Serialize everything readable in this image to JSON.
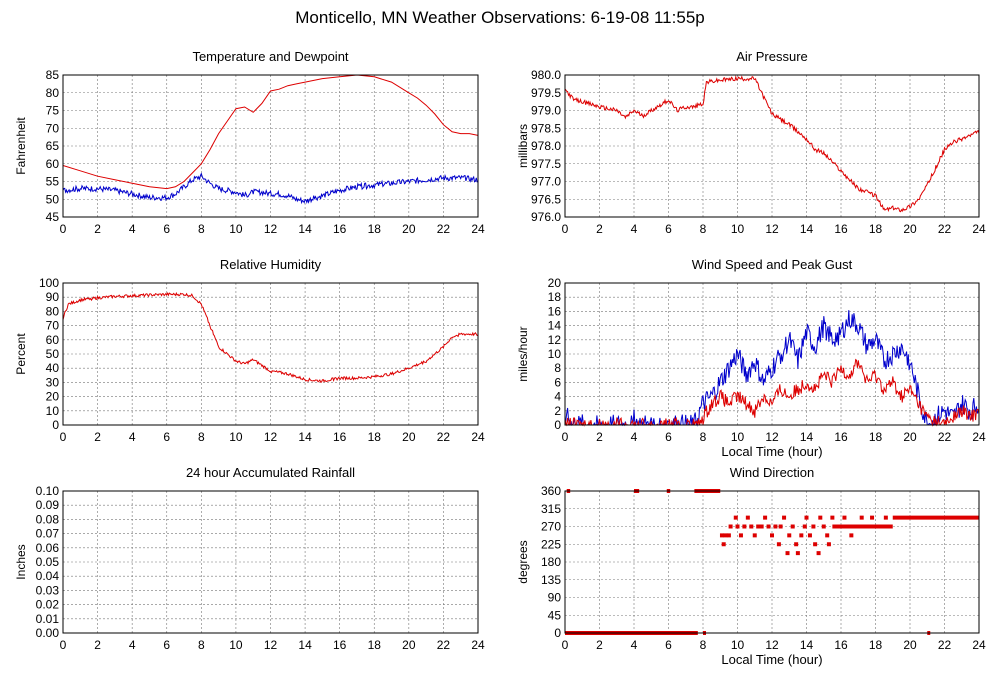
{
  "title": "Monticello, MN Weather Observations: 6-19-08 11:55p",
  "colors": {
    "red": "#dd0000",
    "blue": "#0000cc",
    "grid": "#777777",
    "frame": "#000000"
  },
  "chart_data": [
    {
      "id": "temp",
      "type": "line",
      "title": "Temperature and Dewpoint",
      "xlabel": "",
      "ylabel": "Fahrenheit",
      "xlim": [
        0,
        24
      ],
      "ylim": [
        45,
        85
      ],
      "xticks": [
        0,
        2,
        4,
        6,
        8,
        10,
        12,
        14,
        16,
        18,
        20,
        22,
        24
      ],
      "yticks": [
        45,
        50,
        55,
        60,
        65,
        70,
        75,
        80,
        85
      ],
      "grid": true,
      "series": [
        {
          "color": "#dd0000",
          "x": [
            0,
            1,
            2,
            3,
            4,
            5,
            6,
            6.5,
            7,
            7.5,
            8,
            8.5,
            9,
            9.5,
            10,
            10.5,
            11,
            11.5,
            12,
            12.5,
            13,
            13.5,
            14,
            15,
            16,
            17,
            18,
            19,
            20,
            20.5,
            21,
            21.5,
            22,
            22.5,
            23,
            23.5,
            24
          ],
          "y": [
            59.5,
            58,
            56.5,
            55.5,
            54.5,
            53.5,
            53,
            53.5,
            55,
            57.5,
            60,
            64,
            68.5,
            72,
            75.5,
            76,
            74.5,
            77,
            80.5,
            81,
            82,
            82.5,
            83,
            84,
            84.5,
            85,
            84.5,
            83,
            80,
            78.5,
            76.5,
            74,
            71,
            69,
            68.5,
            68.5,
            68
          ]
        },
        {
          "color": "#0000cc",
          "x": [
            0,
            1,
            2,
            3,
            4,
            5,
            6,
            6.5,
            7,
            7.5,
            8,
            8.5,
            9,
            9.5,
            10,
            10.5,
            11,
            11.5,
            12,
            12.5,
            13,
            13.5,
            14,
            15,
            16,
            17,
            18,
            19,
            20,
            21,
            22,
            23,
            24
          ],
          "y": [
            52.5,
            53,
            53,
            52.5,
            51.5,
            50.5,
            50.5,
            51.5,
            53.5,
            55.5,
            56.5,
            54.5,
            53,
            52.5,
            52,
            51,
            52,
            52,
            51.5,
            51.5,
            51,
            50,
            49.5,
            51,
            52.5,
            53.5,
            54,
            54.5,
            55,
            55.5,
            56,
            56,
            55.5
          ],
          "noise": 0.8
        }
      ]
    },
    {
      "id": "pressure",
      "type": "line",
      "title": "Air Pressure",
      "xlabel": "",
      "ylabel": "millibars",
      "xlim": [
        0,
        24
      ],
      "ylim": [
        976.0,
        980.0
      ],
      "xticks": [
        0,
        2,
        4,
        6,
        8,
        10,
        12,
        14,
        16,
        18,
        20,
        22,
        24
      ],
      "yticks": [
        "976.0",
        "976.5",
        "977.0",
        "977.5",
        "978.0",
        "978.5",
        "979.0",
        "979.5",
        "980.0"
      ],
      "grid": true,
      "series": [
        {
          "color": "#dd0000",
          "x": [
            0,
            0.5,
            1,
            2,
            3,
            3.5,
            4,
            4.5,
            5,
            6,
            6.5,
            7,
            7.5,
            8,
            8.2,
            9,
            10,
            11,
            11.5,
            12,
            13,
            14,
            14.5,
            15,
            16,
            17,
            17.5,
            18,
            18.5,
            19,
            19.5,
            20,
            20.5,
            21,
            21.5,
            22,
            22.5,
            23,
            24
          ],
          "y": [
            979.6,
            979.3,
            979.25,
            979.1,
            979.0,
            978.8,
            979.0,
            978.85,
            979.0,
            979.3,
            979.0,
            979.1,
            979.1,
            979.2,
            979.8,
            979.85,
            979.9,
            979.9,
            979.4,
            978.9,
            978.6,
            978.2,
            977.9,
            977.8,
            977.3,
            976.8,
            976.7,
            976.6,
            976.2,
            976.25,
            976.2,
            976.3,
            976.5,
            976.9,
            977.4,
            977.9,
            978.1,
            978.2,
            978.4
          ],
          "noise": 0.06
        }
      ]
    },
    {
      "id": "humidity",
      "type": "line",
      "title": "Relative Humidity",
      "xlabel": "",
      "ylabel": "Percent",
      "xlim": [
        0,
        24
      ],
      "ylim": [
        0,
        100
      ],
      "xticks": [
        0,
        2,
        4,
        6,
        8,
        10,
        12,
        14,
        16,
        18,
        20,
        22,
        24
      ],
      "yticks": [
        0,
        10,
        20,
        30,
        40,
        50,
        60,
        70,
        80,
        90,
        100
      ],
      "grid": true,
      "series": [
        {
          "color": "#dd0000",
          "x": [
            0,
            0.3,
            1,
            2,
            3,
            4,
            5,
            6,
            7,
            7.5,
            8,
            8.5,
            9,
            9.5,
            10,
            10.5,
            11,
            11.5,
            12,
            12.5,
            13,
            14,
            15,
            16,
            17,
            18,
            19,
            20,
            21,
            22,
            22.5,
            23,
            24
          ],
          "y": [
            75,
            85,
            88,
            89.5,
            90.5,
            91,
            91.5,
            92,
            92,
            91,
            85,
            70,
            55,
            50,
            45,
            43,
            46,
            42,
            38,
            37,
            36,
            32,
            31,
            33,
            33,
            34,
            36,
            40,
            45,
            55,
            62,
            64,
            64
          ],
          "noise": 1.0
        }
      ]
    },
    {
      "id": "wind",
      "type": "line",
      "title": "Wind Speed and Peak Gust",
      "xlabel": "Local Time (hour)",
      "ylabel": "miles/hour",
      "xlim": [
        0,
        24
      ],
      "ylim": [
        0,
        20
      ],
      "xticks": [
        0,
        2,
        4,
        6,
        8,
        10,
        12,
        14,
        16,
        18,
        20,
        22,
        24
      ],
      "yticks": [
        0,
        2,
        4,
        6,
        8,
        10,
        12,
        14,
        16,
        18,
        20
      ],
      "grid": true,
      "series": [
        {
          "color": "#0000cc",
          "x": [
            0,
            0.1,
            0.2,
            0.3,
            0.4,
            3.9,
            4.0,
            4.1,
            4.2,
            4.3,
            5.9,
            6.0,
            6.1,
            6.2,
            7.5,
            8,
            8.5,
            9,
            9.5,
            10,
            10.5,
            11,
            11.5,
            12,
            12.5,
            13,
            13.5,
            14,
            14.5,
            15,
            15.5,
            16,
            16.5,
            17,
            17.5,
            18,
            18.5,
            19,
            19.5,
            20,
            20.5,
            21,
            21.5,
            22,
            22.5,
            23,
            23.5,
            24
          ],
          "y": [
            0,
            2,
            2,
            0,
            0,
            0,
            2,
            1,
            0,
            0,
            0,
            1,
            0,
            0,
            0,
            3,
            4,
            6,
            8,
            10,
            7,
            9,
            6,
            8,
            10,
            12,
            9,
            13,
            11,
            14,
            12,
            13,
            15,
            14,
            11,
            12,
            9,
            10,
            11,
            9,
            4,
            0,
            1,
            2,
            1,
            3,
            2,
            3
          ],
          "noise": 1.5
        },
        {
          "color": "#dd0000",
          "x": [
            0,
            7.8,
            8,
            8.5,
            9,
            9.5,
            10,
            10.5,
            11,
            11.5,
            12,
            12.5,
            13,
            13.5,
            14,
            14.5,
            15,
            15.5,
            16,
            16.5,
            17,
            17.5,
            18,
            18.5,
            19,
            19.5,
            20,
            20.5,
            21,
            22,
            22.5,
            23,
            23.5,
            24
          ],
          "y": [
            0,
            0,
            1,
            3,
            4,
            3,
            4,
            3,
            2,
            4,
            3,
            5,
            4,
            5,
            6,
            5,
            7,
            6,
            8,
            7,
            9,
            6,
            7,
            5,
            6,
            4,
            5,
            3,
            1,
            0,
            1,
            2,
            1,
            2
          ],
          "noise": 1.0
        }
      ]
    },
    {
      "id": "rain",
      "type": "line",
      "title": "24 hour Accumulated Rainfall",
      "xlabel": "",
      "ylabel": "Inches",
      "xlim": [
        0,
        24
      ],
      "ylim": [
        0,
        0.1
      ],
      "xticks": [
        0,
        2,
        4,
        6,
        8,
        10,
        12,
        14,
        16,
        18,
        20,
        22,
        24
      ],
      "yticks": [
        "0.00",
        "0.01",
        "0.02",
        "0.03",
        "0.04",
        "0.05",
        "0.06",
        "0.07",
        "0.08",
        "0.09",
        "0.10"
      ],
      "grid": true,
      "series": [
        {
          "color": "#dd0000",
          "x": [
            0,
            24
          ],
          "y": [
            0,
            0
          ]
        }
      ]
    },
    {
      "id": "direction",
      "type": "scatter",
      "title": "Wind Direction",
      "xlabel": "Local Time (hour)",
      "ylabel": "degrees",
      "xlim": [
        0,
        24
      ],
      "ylim": [
        0,
        360
      ],
      "xticks": [
        0,
        2,
        4,
        6,
        8,
        10,
        12,
        14,
        16,
        18,
        20,
        22,
        24
      ],
      "yticks": [
        0,
        45,
        90,
        135,
        180,
        225,
        270,
        315,
        360
      ],
      "grid": true,
      "series": [
        {
          "color": "#dd0000",
          "segments": [
            {
              "x0": 0,
              "x1": 7.7,
              "y": 0
            },
            {
              "x0": 8.0,
              "x1": 8.1,
              "y": 0
            },
            {
              "x0": 21.0,
              "x1": 21.1,
              "y": 0
            },
            {
              "x0": 0.1,
              "x1": 0.3,
              "y": 360
            },
            {
              "x0": 4.0,
              "x1": 4.3,
              "y": 360
            },
            {
              "x0": 5.9,
              "x1": 6.1,
              "y": 360
            },
            {
              "x0": 7.5,
              "x1": 9.0,
              "y": 360
            },
            {
              "x0": 15.5,
              "x1": 19.0,
              "y": 270
            },
            {
              "x0": 19.0,
              "x1": 24.0,
              "y": 292.5
            }
          ],
          "points": [
            [
              9.1,
              247.5
            ],
            [
              9.3,
              247.5
            ],
            [
              9.5,
              247.5
            ],
            [
              9.2,
              225
            ],
            [
              9.6,
              270
            ],
            [
              9.9,
              292.5
            ],
            [
              10,
              270
            ],
            [
              10.2,
              247.5
            ],
            [
              10.4,
              270
            ],
            [
              10.6,
              292.5
            ],
            [
              10.8,
              270
            ],
            [
              11,
              247.5
            ],
            [
              11.2,
              270
            ],
            [
              11.4,
              270
            ],
            [
              11.6,
              292.5
            ],
            [
              11.8,
              270
            ],
            [
              12,
              247.5
            ],
            [
              12.2,
              270
            ],
            [
              12.4,
              225
            ],
            [
              12.5,
              270
            ],
            [
              12.7,
              292.5
            ],
            [
              12.9,
              202.5
            ],
            [
              13,
              247.5
            ],
            [
              13.2,
              270
            ],
            [
              13.4,
              225
            ],
            [
              13.5,
              202.5
            ],
            [
              13.7,
              247.5
            ],
            [
              13.9,
              270
            ],
            [
              14,
              292.5
            ],
            [
              14.2,
              247.5
            ],
            [
              14.4,
              270
            ],
            [
              14.5,
              225
            ],
            [
              14.7,
              202.5
            ],
            [
              14.8,
              292.5
            ],
            [
              15,
              270
            ],
            [
              15.2,
              247.5
            ],
            [
              15.3,
              225
            ],
            [
              15.5,
              292.5
            ],
            [
              15.8,
              270
            ],
            [
              16.2,
              292.5
            ],
            [
              16.6,
              247.5
            ],
            [
              17.2,
              292.5
            ],
            [
              17.8,
              292.5
            ],
            [
              18.3,
              270
            ],
            [
              18.6,
              292.5
            ]
          ]
        }
      ]
    }
  ]
}
